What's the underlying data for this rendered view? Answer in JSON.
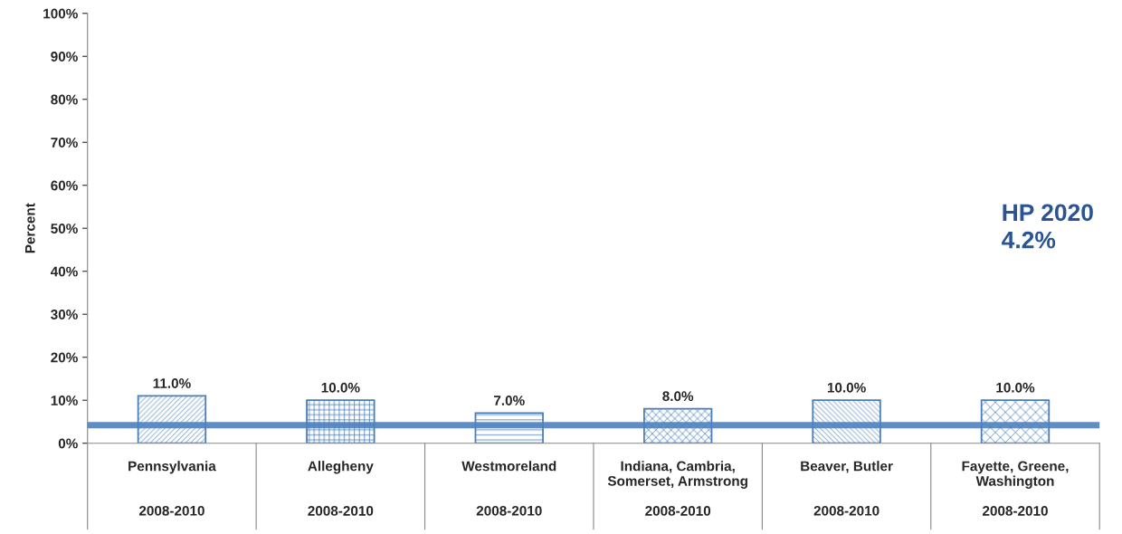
{
  "chart_data": {
    "type": "bar",
    "ylabel": "Percent",
    "categories": [
      "Pennsylvania\n\n\n2008-2010",
      "Allegheny\n\n\n2008-2010",
      "Westmoreland\n\n\n2008-2010",
      "Indiana, Cambria,\nSomerset, Armstrong\n\n2008-2010",
      "Beaver, Butler\n\n\n2008-2010",
      "Fayette, Greene,\nWashington\n\n2008-2010"
    ],
    "values": [
      11.0,
      10.0,
      7.0,
      8.0,
      10.0,
      10.0
    ],
    "value_labels": [
      "11.0%",
      "10.0%",
      "7.0%",
      "8.0%",
      "10.0%",
      "10.0%"
    ],
    "color": "#4a7ebb",
    "ylim": [
      0,
      100
    ],
    "yticks": [
      {
        "value": 0,
        "label": "0%"
      },
      {
        "value": 10,
        "label": "10%"
      },
      {
        "value": 20,
        "label": "20%"
      },
      {
        "value": 30,
        "label": "30%"
      },
      {
        "value": 40,
        "label": "40%"
      },
      {
        "value": 50,
        "label": "50%"
      },
      {
        "value": 60,
        "label": "60%"
      },
      {
        "value": 70,
        "label": "70%"
      },
      {
        "value": 80,
        "label": "80%"
      },
      {
        "value": 90,
        "label": "90%"
      },
      {
        "value": 100,
        "label": "100%"
      }
    ],
    "ref_lines": [
      {
        "axis": "y",
        "value": 4.2,
        "color": "#4f81bd"
      }
    ],
    "annotations": [
      "HP 2020\n4.2%"
    ],
    "grid": false,
    "legend": false
  }
}
